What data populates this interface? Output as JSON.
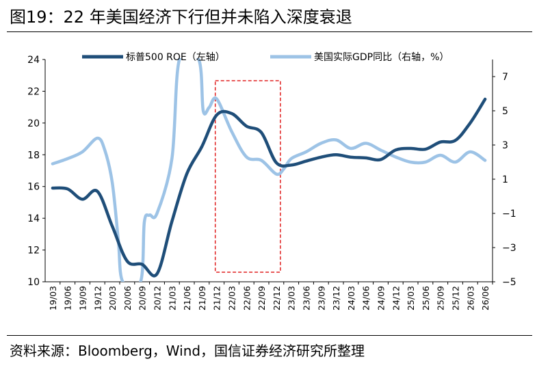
{
  "title": "图19：22 年美国经济下行但并未陷入深度衰退",
  "source": "资料来源：Bloomberg，Wind，国信证券经济研究所整理",
  "chart_data": {
    "type": "line",
    "x": [
      "19/03",
      "19/06",
      "19/09",
      "19/12",
      "20/03",
      "20/06",
      "20/09",
      "20/12",
      "21/03",
      "21/06",
      "21/09",
      "21/12",
      "22/03",
      "22/06",
      "22/09",
      "22/12",
      "23/03",
      "23/06",
      "23/09",
      "23/12",
      "24/03",
      "24/06",
      "24/09",
      "24/12",
      "25/03",
      "25/06",
      "25/09",
      "25/12",
      "26/03",
      "26/06"
    ],
    "left_axis": {
      "ticks": [
        24,
        22,
        20,
        18,
        16,
        14,
        12,
        10
      ],
      "ylim": [
        10,
        24
      ]
    },
    "right_axis": {
      "ticks": [
        7,
        5,
        3,
        1,
        -1,
        -3,
        -5
      ],
      "ylim": [
        -5,
        8
      ]
    },
    "series": [
      {
        "name": "标普500 ROE（左轴）",
        "axis": "left",
        "color": "#1f4e79",
        "points": [
          [
            0,
            15.9
          ],
          [
            1,
            15.85
          ],
          [
            2,
            15.2
          ],
          [
            3,
            15.7
          ],
          [
            4,
            13.5
          ],
          [
            5,
            11.3
          ],
          [
            6,
            11.1
          ],
          [
            7,
            10.5
          ],
          [
            8,
            13.8
          ],
          [
            9,
            16.8
          ],
          [
            10,
            18.5
          ],
          [
            11,
            20.5
          ],
          [
            12,
            20.6
          ],
          [
            13,
            19.8
          ],
          [
            14,
            19.4
          ],
          [
            15,
            17.5
          ],
          [
            16,
            17.35
          ],
          [
            17,
            17.6
          ],
          [
            18,
            17.85
          ],
          [
            19,
            18.0
          ],
          [
            20,
            17.85
          ],
          [
            21,
            17.8
          ],
          [
            22,
            17.7
          ],
          [
            23,
            18.3
          ],
          [
            24,
            18.4
          ],
          [
            25,
            18.35
          ],
          [
            26,
            18.8
          ],
          [
            27,
            18.9
          ],
          [
            28,
            20.0
          ],
          [
            29,
            21.5
          ]
        ]
      },
      {
        "name": "美国实际GDP同比（右轴，%）",
        "axis": "right",
        "color": "#9dc3e6",
        "points": [
          [
            0,
            1.9
          ],
          [
            1,
            2.2
          ],
          [
            2,
            2.6
          ],
          [
            3,
            3.4
          ],
          [
            3.5,
            2.7
          ],
          [
            4,
            0.8
          ],
          [
            4.4,
            -2.5
          ],
          [
            4.7,
            -5.0
          ],
          [
            5.9,
            -5.0
          ],
          [
            6.15,
            -1.5
          ],
          [
            6.5,
            -1.1
          ],
          [
            7,
            -1.0
          ],
          [
            8,
            2.2
          ],
          [
            8.5,
            8.0
          ],
          [
            9.8,
            8.0
          ],
          [
            10.1,
            5.0
          ],
          [
            10.5,
            5.2
          ],
          [
            11,
            5.7
          ],
          [
            12,
            3.8
          ],
          [
            13,
            2.3
          ],
          [
            14,
            2.1
          ],
          [
            15,
            1.3
          ],
          [
            15.5,
            1.6
          ],
          [
            16,
            2.2
          ],
          [
            17,
            2.6
          ],
          [
            18,
            3.1
          ],
          [
            19,
            3.3
          ],
          [
            20,
            2.8
          ],
          [
            21,
            3.1
          ],
          [
            22,
            2.7
          ],
          [
            23,
            2.3
          ],
          [
            24,
            2.0
          ],
          [
            25,
            2.0
          ],
          [
            26,
            2.4
          ],
          [
            27,
            2.0
          ],
          [
            28,
            2.6
          ],
          [
            29,
            2.1
          ]
        ]
      }
    ],
    "highlight": {
      "from": 11,
      "to": 15
    }
  }
}
